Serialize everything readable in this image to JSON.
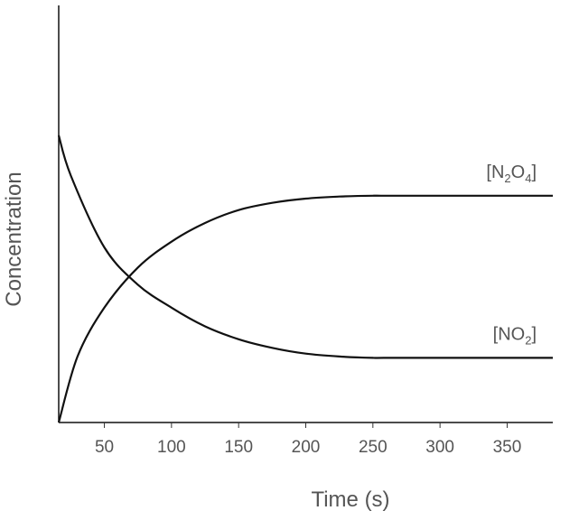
{
  "chart_data": {
    "type": "line",
    "title": "",
    "xlabel": "Time (s)",
    "ylabel": "Concentration",
    "xlim": [
      16,
      384
    ],
    "ylim": [
      0,
      1
    ],
    "xticks": [
      50,
      100,
      150,
      200,
      250,
      300,
      350
    ],
    "grid": false,
    "series": [
      {
        "name": "[N2O4]",
        "label_parts": [
          "[N",
          "2",
          "O",
          "4",
          "]"
        ],
        "x": [
          16,
          30,
          50,
          75,
          100,
          125,
          150,
          175,
          200,
          225,
          250,
          258,
          300,
          350,
          384
        ],
        "y": [
          0.0,
          0.23,
          0.4,
          0.54,
          0.63,
          0.695,
          0.74,
          0.765,
          0.78,
          0.787,
          0.79,
          0.79,
          0.79,
          0.79,
          0.79
        ]
      },
      {
        "name": "[NO2]",
        "label_parts": [
          "[NO",
          "2",
          "]"
        ],
        "x": [
          16,
          25,
          50,
          75,
          100,
          125,
          150,
          175,
          200,
          225,
          250,
          258,
          300,
          350,
          384
        ],
        "y": [
          1.0,
          0.86,
          0.61,
          0.48,
          0.4,
          0.335,
          0.29,
          0.26,
          0.24,
          0.23,
          0.225,
          0.225,
          0.225,
          0.225,
          0.225
        ]
      }
    ]
  }
}
